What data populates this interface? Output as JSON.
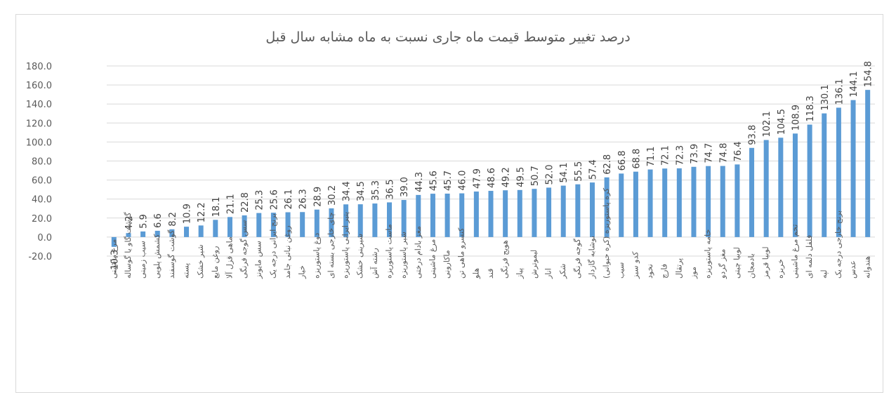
{
  "chart_data": {
    "type": "bar",
    "title": "درصد تغییر متوسط قیمت ماه جاری نسبت به ماه مشابه سال قبل",
    "ylim": [
      -20,
      180
    ],
    "yticks": [
      "-20.0",
      "0.0",
      "20.0",
      "40.0",
      "60.0",
      "80.0",
      "100.0",
      "120.0",
      "140.0",
      "160.0",
      "180.0"
    ],
    "ytick_values": [
      -20,
      0,
      20,
      40,
      60,
      80,
      100,
      120,
      140,
      160,
      180
    ],
    "grid": true,
    "bar_color": "#5b9bd5",
    "categories": [
      "مرغ ماشینی",
      "گوشت گاو یا گوساله",
      "سیب زمینی",
      "کشمش پلویی",
      "گوشت گوسفند",
      "پسته",
      "شیر خشک",
      "روغن مایع",
      "ماهی قزل آلا",
      "سس گوجه فرنگی",
      "سس مایونز",
      "برنج ایرانی درجه یک",
      "روغن نباتی جامد",
      "خیار",
      "دوغ پاستوریزه",
      "چای خارجی بسته ای",
      "پنیر ایرانی پاستوریزه",
      "شیرینی خشک",
      "رشته آش",
      "ماست پاستوریزه",
      "شیر پاستوریزه",
      "مغز بادام درختی",
      "مرغ ماشینی",
      "ماکارونی",
      "کنسرو ماهی تن",
      "هلو",
      "قند",
      "هویج فرنگی",
      "پیاز",
      "لیموترش",
      "انار",
      "شکر",
      "گوجه فرنگی",
      "نوشابه گازدار",
      "کره پاستوریزه (کره حیوانی)",
      "سیب",
      "کدو سبز",
      "نخود",
      "فارچ",
      "پرتقال",
      "موز",
      "خامه پاستوریزه",
      "مغز گردو",
      "لوبیا چیتی",
      "بادمجان",
      "لوبیا قرمز",
      "خربزه",
      "تخم مرغ ماشینی",
      "فلفل دلمه ای",
      "لپه",
      "برنج خارجی درجه یک",
      "عدس",
      "هندوانه"
    ],
    "values": [
      -10.3,
      4.2,
      5.9,
      6.6,
      8.2,
      10.9,
      12.2,
      18.1,
      21.1,
      22.8,
      25.3,
      25.6,
      26.1,
      26.3,
      28.9,
      30.2,
      34.4,
      34.5,
      35.3,
      36.5,
      39.0,
      44.3,
      45.6,
      45.7,
      46.0,
      47.9,
      48.6,
      49.2,
      49.5,
      50.7,
      52.0,
      54.1,
      55.5,
      57.4,
      62.8,
      66.8,
      68.8,
      71.1,
      72.1,
      72.3,
      73.9,
      74.7,
      74.8,
      76.4,
      93.8,
      102.1,
      104.5,
      108.9,
      118.3,
      130.1,
      136.1,
      144.1,
      154.8
    ],
    "value_labels": [
      "-10.3",
      "4.2",
      "5.9",
      "6.6",
      "8.2",
      "10.9",
      "12.2",
      "18.1",
      "21.1",
      "22.8",
      "25.3",
      "25.6",
      "26.1",
      "26.3",
      "28.9",
      "30.2",
      "34.4",
      "34.5",
      "35.3",
      "36.5",
      "39.0",
      "44.3",
      "45.6",
      "45.7",
      "46.0",
      "47.9",
      "48.6",
      "49.2",
      "49.5",
      "50.7",
      "52.0",
      "54.1",
      "55.5",
      "57.4",
      "62.8",
      "66.8",
      "68.8",
      "71.1",
      "72.1",
      "72.3",
      "73.9",
      "74.7",
      "74.8",
      "76.4",
      "93.8",
      "102.1",
      "104.5",
      "108.9",
      "118.3",
      "130.1",
      "136.1",
      "144.1",
      "154.8"
    ]
  }
}
